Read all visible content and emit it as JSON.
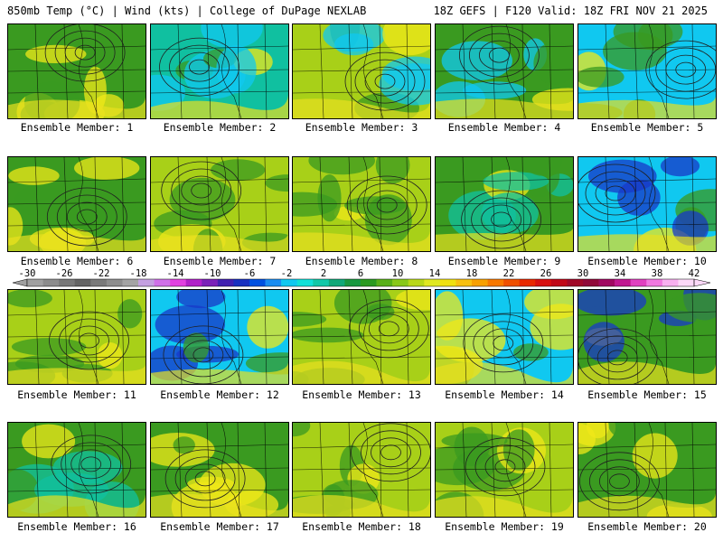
{
  "header": {
    "left": "850mb Temp (°C) | Wind (kts) | College of DuPage NEXLAB",
    "right": "18Z GEFS | F120 Valid: 18Z FRI NOV 21 2025"
  },
  "member_label_prefix": "Ensemble Member: ",
  "members": [
    {
      "id": "1",
      "dominant": "green",
      "accent": "yellow"
    },
    {
      "id": "2",
      "dominant": "teal",
      "accent": "cyan"
    },
    {
      "id": "3",
      "dominant": "yellow-green",
      "accent": "cyan"
    },
    {
      "id": "4",
      "dominant": "green",
      "accent": "cyan"
    },
    {
      "id": "5",
      "dominant": "cyan",
      "accent": "green"
    },
    {
      "id": "6",
      "dominant": "green",
      "accent": "yellow"
    },
    {
      "id": "7",
      "dominant": "yellow-green",
      "accent": "green"
    },
    {
      "id": "8",
      "dominant": "yellow-green",
      "accent": "green"
    },
    {
      "id": "9",
      "dominant": "green",
      "accent": "teal"
    },
    {
      "id": "10",
      "dominant": "cyan",
      "accent": "blue"
    },
    {
      "id": "11",
      "dominant": "yellow-green",
      "accent": "green"
    },
    {
      "id": "12",
      "dominant": "cyan",
      "accent": "blue"
    },
    {
      "id": "13",
      "dominant": "yellow-green",
      "accent": "green"
    },
    {
      "id": "14",
      "dominant": "cyan",
      "accent": "yellow"
    },
    {
      "id": "15",
      "dominant": "green",
      "accent": "blue"
    },
    {
      "id": "16",
      "dominant": "green",
      "accent": "teal"
    },
    {
      "id": "17",
      "dominant": "green",
      "accent": "yellow"
    },
    {
      "id": "18",
      "dominant": "yellow-green",
      "accent": "green"
    },
    {
      "id": "19",
      "dominant": "yellow-green",
      "accent": "green"
    },
    {
      "id": "20",
      "dominant": "green",
      "accent": "yellow"
    }
  ],
  "colorbar": {
    "labels": [
      "-30",
      "-26",
      "-22",
      "-18",
      "-14",
      "-10",
      "-6",
      "-2",
      "2",
      "6",
      "10",
      "14",
      "18",
      "22",
      "26",
      "30",
      "34",
      "38",
      "42"
    ],
    "colors": [
      "#a0a0a0",
      "#8c8c8c",
      "#787878",
      "#646464",
      "#7a7a7a",
      "#8e8e8e",
      "#a4a4a4",
      "#c4a0e0",
      "#d070e8",
      "#e040e0",
      "#b020c8",
      "#7a20b8",
      "#4020b0",
      "#1830c0",
      "#0050e0",
      "#1a8cf0",
      "#10c8f0",
      "#10e0d8",
      "#10c8a8",
      "#10a878",
      "#189840",
      "#2a9a20",
      "#58b018",
      "#88c818",
      "#b8d818",
      "#e0e820",
      "#f0e010",
      "#f8c010",
      "#f8a000",
      "#f87800",
      "#f05000",
      "#e82800",
      "#d81010",
      "#c00818",
      "#a00828",
      "#900838",
      "#a00860",
      "#c01890",
      "#e040c0",
      "#f078e0",
      "#f8b0f0",
      "#fcd8f8"
    ]
  }
}
